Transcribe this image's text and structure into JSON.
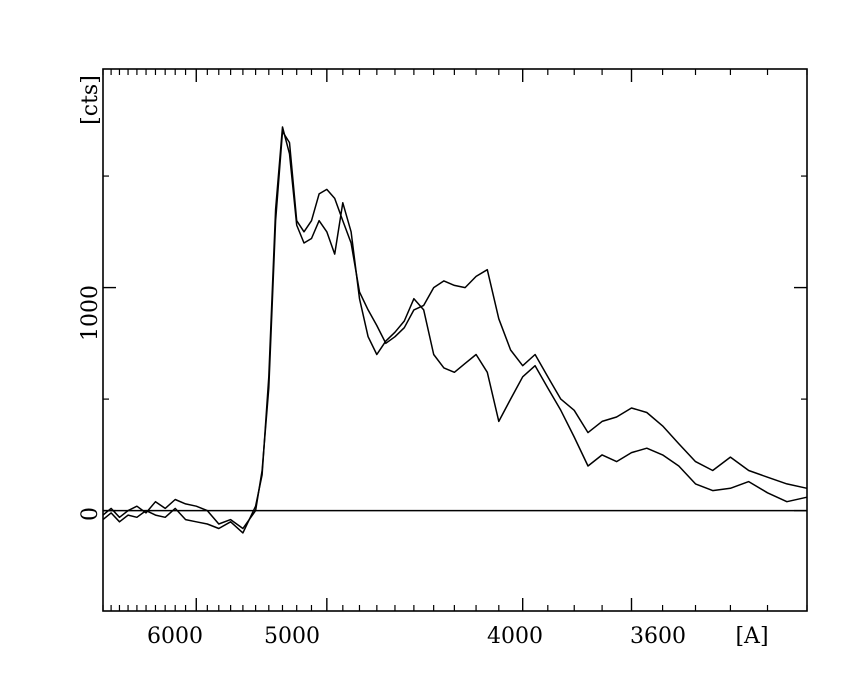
{
  "chart_data": {
    "type": "line",
    "title": "",
    "xlabel": "[A]",
    "ylabel": "[cts]",
    "x_axis": "reciprocal wavelength (values decrease to the right)",
    "xlim": [
      7000,
      3100
    ],
    "ylim": [
      -450,
      1980
    ],
    "x_ticks": [
      6000,
      5000,
      4000,
      3600
    ],
    "x_tick_labels": [
      "6000",
      "5000",
      "4000",
      "3600"
    ],
    "y_ticks": [
      0,
      1000
    ],
    "y_tick_labels": [
      "0",
      "1000"
    ],
    "zero_line": true,
    "grid": false,
    "series": [
      {
        "x": [
          7000,
          6900,
          6800,
          6700,
          6600,
          6500,
          6400,
          6300,
          6200,
          6100,
          6000,
          5900,
          5800,
          5700,
          5600,
          5500,
          5450,
          5400,
          5350,
          5300,
          5250,
          5200,
          5150,
          5100,
          5050,
          5000,
          4950,
          4900,
          4850,
          4800,
          4750,
          4700,
          4650,
          4600,
          4550,
          4500,
          4450,
          4400,
          4350,
          4300,
          4250,
          4200,
          4150,
          4100,
          4050,
          4000,
          3950,
          3900,
          3850,
          3800,
          3750,
          3700,
          3650,
          3600,
          3550,
          3500,
          3450,
          3400,
          3350,
          3300,
          3250,
          3200,
          3150,
          3100
        ],
        "y": [
          -20,
          10,
          -30,
          0,
          20,
          -10,
          40,
          10,
          50,
          30,
          20,
          0,
          -60,
          -40,
          -80,
          0,
          180,
          550,
          1300,
          1700,
          1650,
          1300,
          1250,
          1300,
          1420,
          1440,
          1400,
          1300,
          1200,
          980,
          900,
          830,
          750,
          780,
          820,
          900,
          920,
          1000,
          1030,
          1010,
          1000,
          1050,
          1080,
          860,
          720,
          650,
          700,
          600,
          500,
          450,
          350,
          400,
          420,
          460,
          440,
          380,
          300,
          220,
          180,
          240,
          180,
          150,
          120,
          100
        ]
      },
      {
        "x": [
          7000,
          6900,
          6800,
          6700,
          6600,
          6500,
          6400,
          6300,
          6200,
          6100,
          6000,
          5900,
          5800,
          5700,
          5600,
          5500,
          5450,
          5400,
          5350,
          5300,
          5250,
          5200,
          5150,
          5100,
          5050,
          5000,
          4950,
          4900,
          4850,
          4800,
          4750,
          4700,
          4650,
          4600,
          4550,
          4500,
          4450,
          4400,
          4350,
          4300,
          4250,
          4200,
          4150,
          4100,
          4050,
          4000,
          3950,
          3900,
          3850,
          3800,
          3750,
          3700,
          3650,
          3600,
          3550,
          3500,
          3450,
          3400,
          3350,
          3300,
          3250,
          3200,
          3150,
          3100
        ],
        "y": [
          -40,
          -10,
          -50,
          -20,
          -30,
          0,
          -20,
          -30,
          10,
          -40,
          -50,
          -60,
          -80,
          -50,
          -100,
          20,
          160,
          600,
          1350,
          1720,
          1600,
          1280,
          1200,
          1220,
          1300,
          1250,
          1150,
          1380,
          1250,
          950,
          780,
          700,
          760,
          800,
          850,
          950,
          900,
          700,
          640,
          620,
          660,
          700,
          620,
          400,
          500,
          600,
          650,
          550,
          450,
          330,
          200,
          250,
          220,
          260,
          280,
          250,
          200,
          120,
          90,
          100,
          130,
          80,
          40,
          60
        ]
      }
    ]
  }
}
